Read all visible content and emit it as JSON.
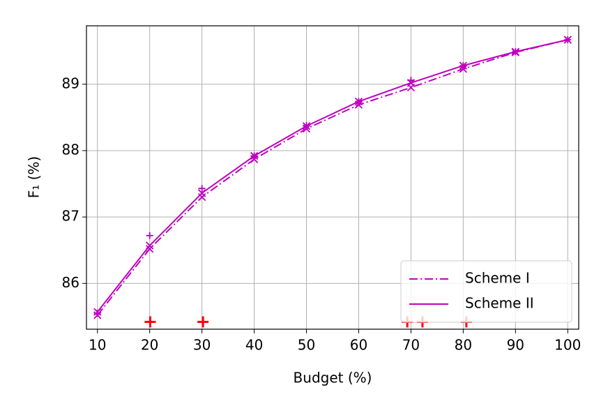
{
  "chart_data": {
    "type": "line",
    "xlabel": "Budget (%)",
    "ylabel": "F₁ (%)",
    "x": [
      10,
      20,
      30,
      40,
      50,
      60,
      70,
      80,
      90,
      100
    ],
    "series": [
      {
        "name": "Scheme I",
        "color": "#bf00bf",
        "style": "dashdot",
        "marker": "x",
        "values": [
          85.52,
          86.52,
          87.3,
          87.87,
          88.33,
          88.69,
          88.95,
          89.23,
          89.48,
          89.67
        ]
      },
      {
        "name": "Scheme II",
        "color": "#bf00bf",
        "style": "solid",
        "marker": "x",
        "values": [
          85.57,
          86.57,
          87.36,
          87.92,
          88.37,
          88.74,
          89.02,
          89.28,
          89.49,
          89.67
        ]
      },
      {
        "color": "#bf00bf",
        "style": "none",
        "marker": "+",
        "values": [
          85.55,
          86.72,
          87.43,
          87.92,
          88.38,
          88.74,
          89.06,
          89.28,
          89.49,
          89.67
        ]
      },
      {
        "color": "#ff0000",
        "style": "none",
        "marker": "+",
        "big": true,
        "x": [
          20.1,
          30.2,
          69.3,
          72.2,
          80.6
        ],
        "values": [
          85.42,
          85.42,
          85.42,
          85.42,
          85.42
        ]
      }
    ],
    "xlim": [
      7.9,
      102.1
    ],
    "ylim": [
      85.31,
      89.88
    ],
    "xticks": [
      10,
      20,
      30,
      40,
      50,
      60,
      70,
      80,
      90,
      100
    ],
    "yticks": [
      86,
      87,
      88,
      89
    ],
    "grid": true,
    "legend": "lower right"
  }
}
